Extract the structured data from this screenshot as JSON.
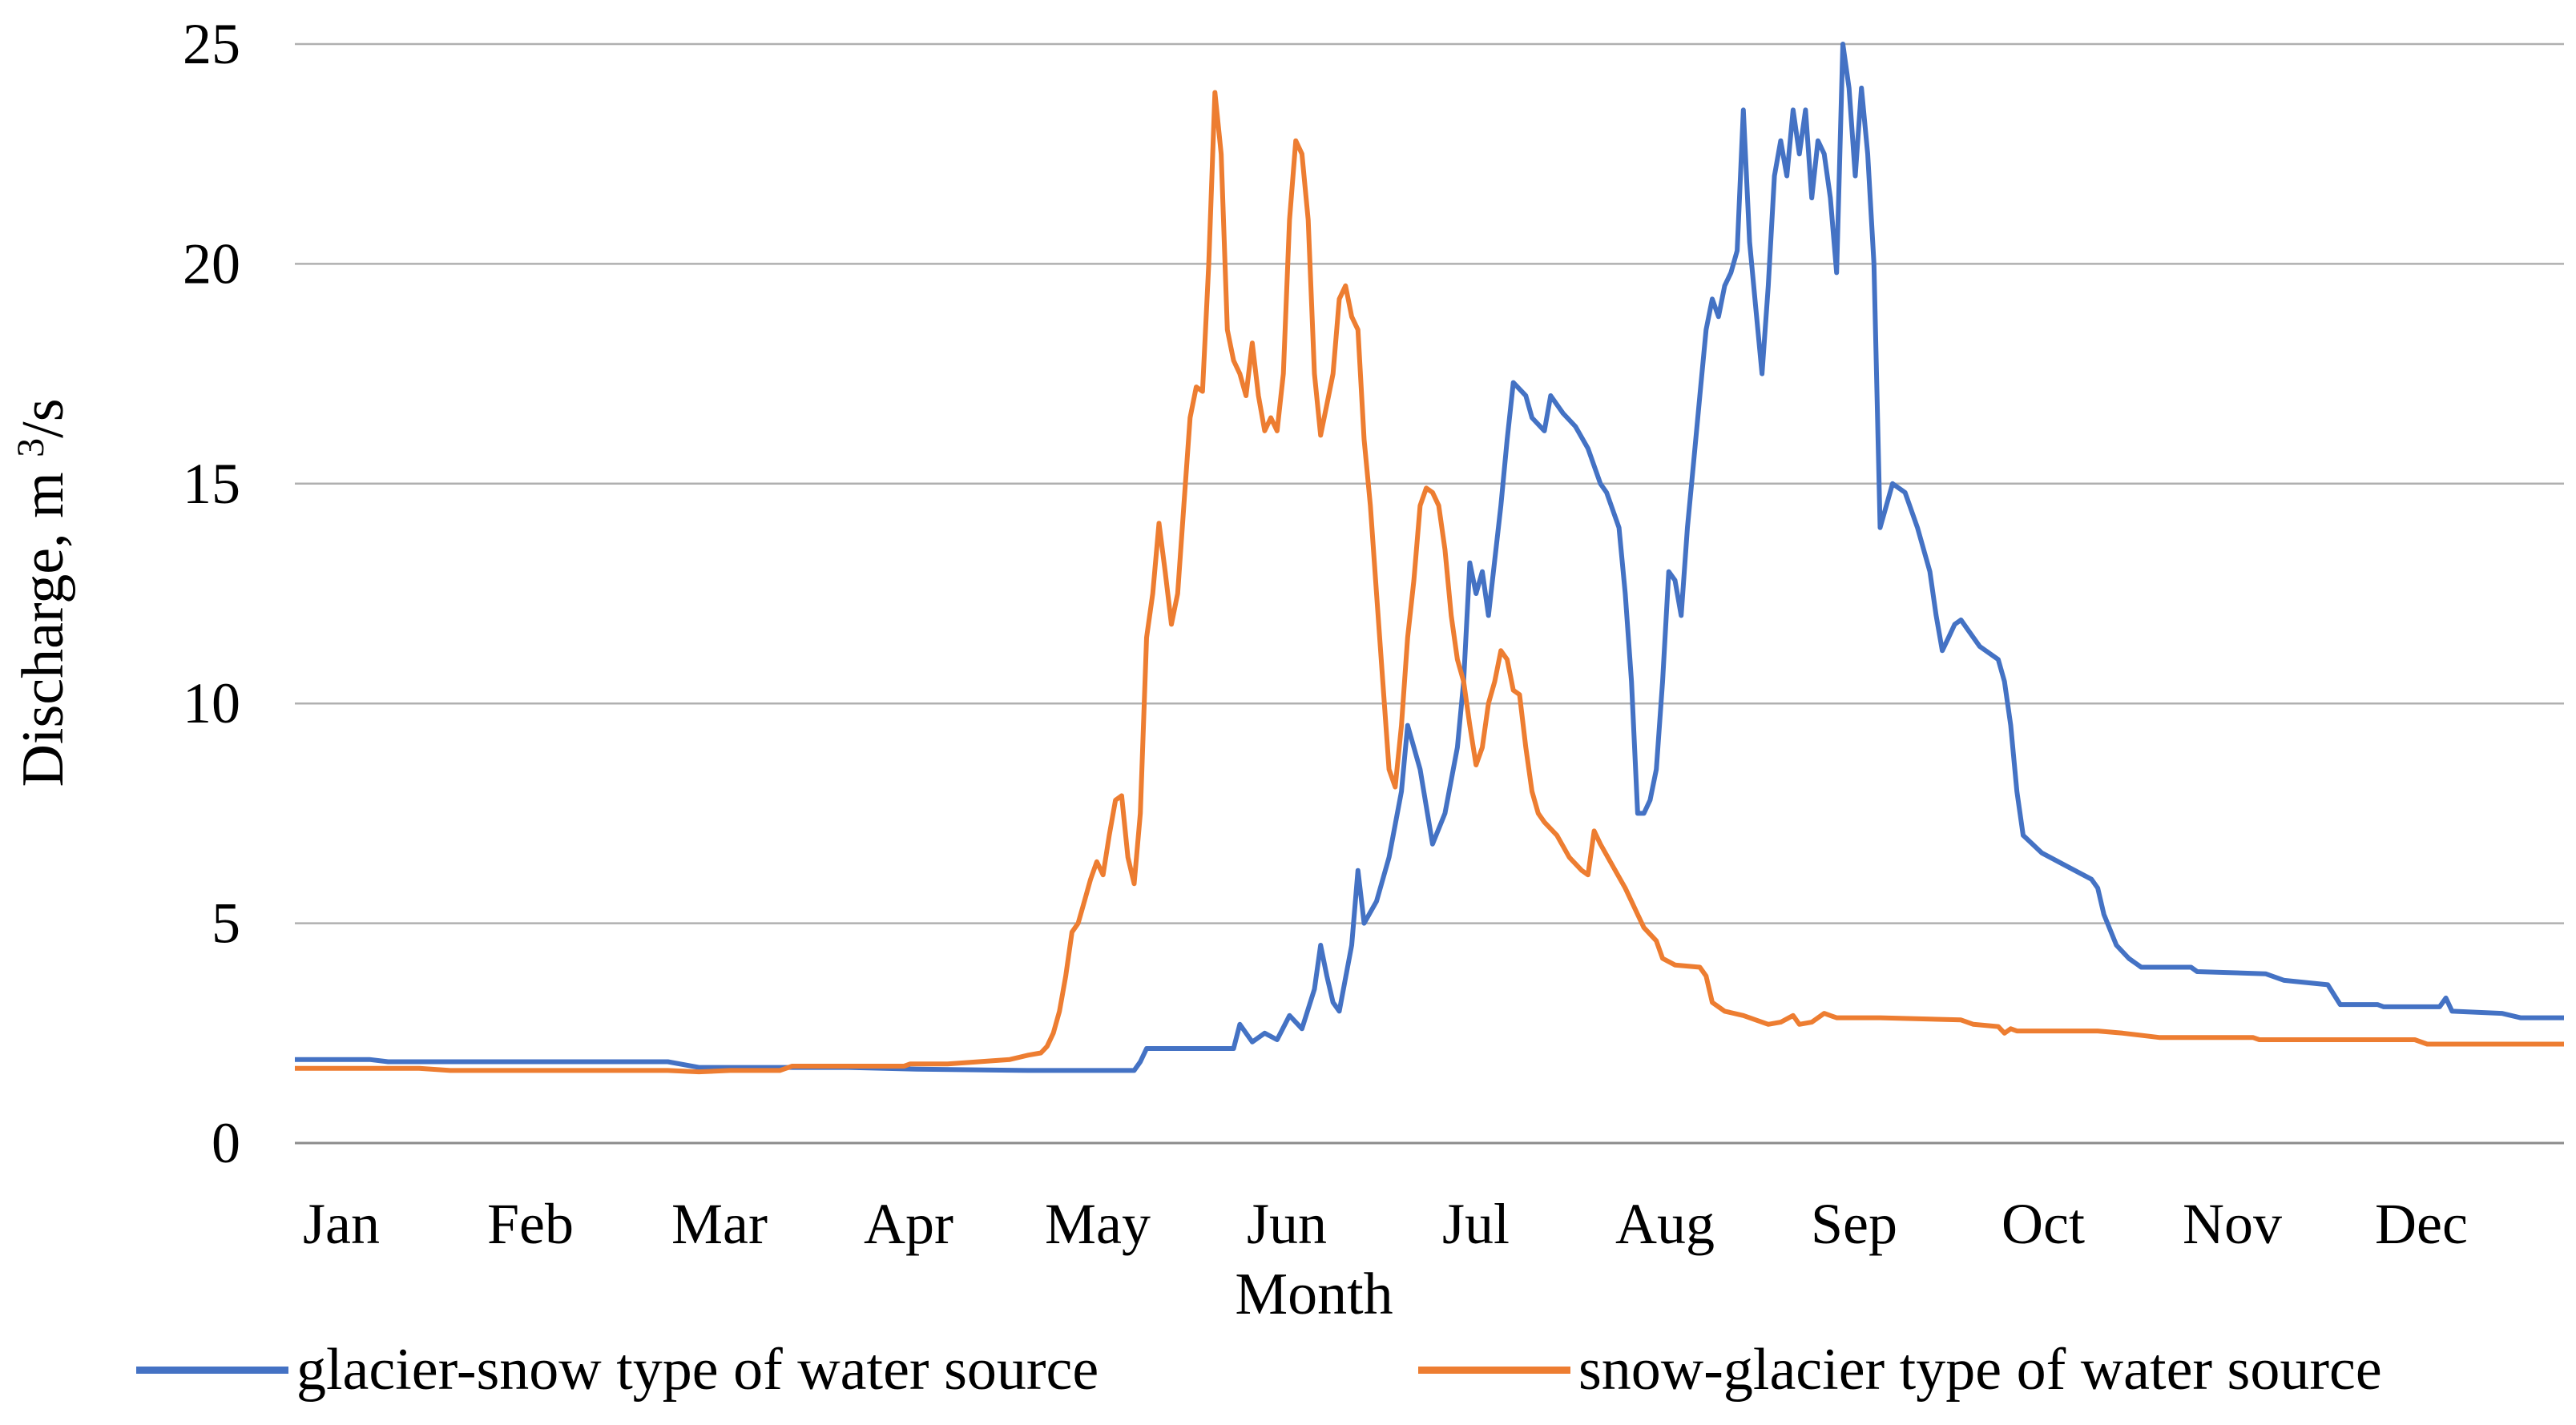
{
  "chart_data": {
    "type": "line",
    "title": "",
    "xlabel": "Month",
    "ylabel": "Discharge, m ³/s",
    "ylabel_main": "Discharge, m ",
    "ylabel_sup": "3",
    "ylabel_tail": "/s",
    "ylim": [
      0,
      25
    ],
    "yticks": [
      0,
      5,
      10,
      15,
      20,
      25
    ],
    "grid": true,
    "legend_position": "bottom",
    "months": [
      "Jan",
      "Feb",
      "Mar",
      "Apr",
      "May",
      "Jun",
      "Jul",
      "Aug",
      "Sep",
      "Oct",
      "Nov",
      "Dec"
    ],
    "day_range": [
      0,
      365
    ],
    "series": [
      {
        "name": "glacier-snow type of water source",
        "color": "#4472C4",
        "points": [
          [
            0,
            1.9
          ],
          [
            12,
            1.9
          ],
          [
            15,
            1.85
          ],
          [
            60,
            1.85
          ],
          [
            65,
            1.72
          ],
          [
            89,
            1.72
          ],
          [
            100,
            1.68
          ],
          [
            118,
            1.65
          ],
          [
            130,
            1.65
          ],
          [
            135,
            1.65
          ],
          [
            136,
            1.85
          ],
          [
            137,
            2.15
          ],
          [
            148,
            2.15
          ],
          [
            151,
            2.15
          ],
          [
            152,
            2.7
          ],
          [
            154,
            2.3
          ],
          [
            156,
            2.5
          ],
          [
            158,
            2.35
          ],
          [
            160,
            2.9
          ],
          [
            162,
            2.6
          ],
          [
            164,
            3.5
          ],
          [
            165,
            4.5
          ],
          [
            166,
            3.8
          ],
          [
            167,
            3.2
          ],
          [
            168,
            3.0
          ],
          [
            170,
            4.5
          ],
          [
            171,
            6.2
          ],
          [
            172,
            5.0
          ],
          [
            174,
            5.5
          ],
          [
            176,
            6.5
          ],
          [
            178,
            8.0
          ],
          [
            179,
            9.5
          ],
          [
            181,
            8.5
          ],
          [
            183,
            6.8
          ],
          [
            185,
            7.5
          ],
          [
            187,
            9.0
          ],
          [
            188,
            10.5
          ],
          [
            189,
            13.2
          ],
          [
            190,
            12.5
          ],
          [
            191,
            13.0
          ],
          [
            192,
            12.0
          ],
          [
            194,
            14.5
          ],
          [
            195,
            16.0
          ],
          [
            196,
            17.3
          ],
          [
            198,
            17.0
          ],
          [
            199,
            16.5
          ],
          [
            201,
            16.2
          ],
          [
            202,
            17.0
          ],
          [
            204,
            16.6
          ],
          [
            206,
            16.3
          ],
          [
            208,
            15.8
          ],
          [
            210,
            15.0
          ],
          [
            211,
            14.8
          ],
          [
            213,
            14.0
          ],
          [
            214,
            12.5
          ],
          [
            215,
            10.5
          ],
          [
            216,
            7.5
          ],
          [
            217,
            7.5
          ],
          [
            218,
            7.8
          ],
          [
            219,
            8.5
          ],
          [
            220,
            10.5
          ],
          [
            221,
            13.0
          ],
          [
            222,
            12.8
          ],
          [
            223,
            12.0
          ],
          [
            224,
            14.0
          ],
          [
            225,
            15.5
          ],
          [
            226,
            17.0
          ],
          [
            227,
            18.5
          ],
          [
            228,
            19.2
          ],
          [
            229,
            18.8
          ],
          [
            230,
            19.5
          ],
          [
            231,
            19.8
          ],
          [
            232,
            20.3
          ],
          [
            233,
            23.5
          ],
          [
            234,
            20.5
          ],
          [
            235,
            19.0
          ],
          [
            236,
            17.5
          ],
          [
            237,
            19.5
          ],
          [
            238,
            22.0
          ],
          [
            239,
            22.8
          ],
          [
            240,
            22.0
          ],
          [
            241,
            23.5
          ],
          [
            242,
            22.5
          ],
          [
            243,
            23.5
          ],
          [
            244,
            21.5
          ],
          [
            245,
            22.8
          ],
          [
            246,
            22.5
          ],
          [
            247,
            21.5
          ],
          [
            248,
            19.8
          ],
          [
            249,
            25.0
          ],
          [
            250,
            24.0
          ],
          [
            251,
            22.0
          ],
          [
            252,
            24.0
          ],
          [
            253,
            22.5
          ],
          [
            254,
            20.0
          ],
          [
            255,
            14.0
          ],
          [
            256,
            14.5
          ],
          [
            257,
            15.0
          ],
          [
            259,
            14.8
          ],
          [
            261,
            14.0
          ],
          [
            263,
            13.0
          ],
          [
            264,
            12.0
          ],
          [
            265,
            11.2
          ],
          [
            266,
            11.5
          ],
          [
            267,
            11.8
          ],
          [
            268,
            11.9
          ],
          [
            269,
            11.7
          ],
          [
            271,
            11.3
          ],
          [
            274,
            11.0
          ],
          [
            275,
            10.5
          ],
          [
            276,
            9.5
          ],
          [
            277,
            8.0
          ],
          [
            278,
            7.0
          ],
          [
            281,
            6.6
          ],
          [
            285,
            6.3
          ],
          [
            289,
            6.0
          ],
          [
            290,
            5.8
          ],
          [
            291,
            5.2
          ],
          [
            293,
            4.5
          ],
          [
            295,
            4.2
          ],
          [
            297,
            4.0
          ],
          [
            305,
            4.0
          ],
          [
            306,
            3.9
          ],
          [
            317,
            3.85
          ],
          [
            320,
            3.7
          ],
          [
            327,
            3.6
          ],
          [
            329,
            3.15
          ],
          [
            335,
            3.15
          ],
          [
            336,
            3.1
          ],
          [
            345,
            3.1
          ],
          [
            346,
            3.3
          ],
          [
            347,
            3.0
          ],
          [
            355,
            2.95
          ],
          [
            358,
            2.85
          ],
          [
            365,
            2.85
          ]
        ]
      },
      {
        "name": "snow-glacier type of water source",
        "color": "#ED7D31",
        "points": [
          [
            0,
            1.7
          ],
          [
            20,
            1.7
          ],
          [
            25,
            1.65
          ],
          [
            60,
            1.65
          ],
          [
            65,
            1.62
          ],
          [
            70,
            1.65
          ],
          [
            78,
            1.65
          ],
          [
            80,
            1.75
          ],
          [
            98,
            1.75
          ],
          [
            99,
            1.8
          ],
          [
            105,
            1.8
          ],
          [
            110,
            1.85
          ],
          [
            115,
            1.9
          ],
          [
            118,
            2.0
          ],
          [
            120,
            2.05
          ],
          [
            121,
            2.2
          ],
          [
            122,
            2.5
          ],
          [
            123,
            3.0
          ],
          [
            124,
            3.8
          ],
          [
            125,
            4.8
          ],
          [
            126,
            5.0
          ],
          [
            127,
            5.5
          ],
          [
            128,
            6.0
          ],
          [
            129,
            6.4
          ],
          [
            130,
            6.1
          ],
          [
            131,
            7.0
          ],
          [
            132,
            7.8
          ],
          [
            133,
            7.9
          ],
          [
            134,
            6.5
          ],
          [
            135,
            5.9
          ],
          [
            136,
            7.5
          ],
          [
            137,
            11.5
          ],
          [
            138,
            12.5
          ],
          [
            139,
            14.1
          ],
          [
            140,
            13.0
          ],
          [
            141,
            11.8
          ],
          [
            142,
            12.5
          ],
          [
            143,
            14.5
          ],
          [
            144,
            16.5
          ],
          [
            145,
            17.2
          ],
          [
            146,
            17.1
          ],
          [
            147,
            20.0
          ],
          [
            148,
            23.9
          ],
          [
            149,
            22.5
          ],
          [
            150,
            18.5
          ],
          [
            151,
            17.8
          ],
          [
            152,
            17.5
          ],
          [
            153,
            17.0
          ],
          [
            154,
            18.2
          ],
          [
            155,
            17.0
          ],
          [
            156,
            16.2
          ],
          [
            157,
            16.5
          ],
          [
            158,
            16.2
          ],
          [
            159,
            17.5
          ],
          [
            160,
            21.0
          ],
          [
            161,
            22.8
          ],
          [
            162,
            22.5
          ],
          [
            163,
            21.0
          ],
          [
            164,
            17.5
          ],
          [
            165,
            16.1
          ],
          [
            166,
            16.8
          ],
          [
            167,
            17.5
          ],
          [
            168,
            19.2
          ],
          [
            169,
            19.5
          ],
          [
            170,
            18.8
          ],
          [
            171,
            18.5
          ],
          [
            172,
            16.0
          ],
          [
            173,
            14.5
          ],
          [
            174,
            12.5
          ],
          [
            175,
            10.5
          ],
          [
            176,
            8.5
          ],
          [
            177,
            8.1
          ],
          [
            178,
            9.5
          ],
          [
            179,
            11.5
          ],
          [
            180,
            12.8
          ],
          [
            181,
            14.5
          ],
          [
            182,
            14.9
          ],
          [
            183,
            14.8
          ],
          [
            184,
            14.5
          ],
          [
            185,
            13.5
          ],
          [
            186,
            12.0
          ],
          [
            187,
            11.0
          ],
          [
            188,
            10.5
          ],
          [
            189,
            9.5
          ],
          [
            190,
            8.6
          ],
          [
            191,
            9.0
          ],
          [
            192,
            10.0
          ],
          [
            193,
            10.5
          ],
          [
            194,
            11.2
          ],
          [
            195,
            11.0
          ],
          [
            196,
            10.3
          ],
          [
            197,
            10.2
          ],
          [
            198,
            9.0
          ],
          [
            199,
            8.0
          ],
          [
            200,
            7.5
          ],
          [
            201,
            7.3
          ],
          [
            203,
            7.0
          ],
          [
            205,
            6.5
          ],
          [
            207,
            6.2
          ],
          [
            208,
            6.1
          ],
          [
            209,
            7.1
          ],
          [
            210,
            6.8
          ],
          [
            212,
            6.3
          ],
          [
            214,
            5.8
          ],
          [
            215,
            5.5
          ],
          [
            216,
            5.2
          ],
          [
            217,
            4.9
          ],
          [
            219,
            4.6
          ],
          [
            220,
            4.2
          ],
          [
            222,
            4.05
          ],
          [
            226,
            4.0
          ],
          [
            227,
            3.8
          ],
          [
            228,
            3.2
          ],
          [
            230,
            3.0
          ],
          [
            233,
            2.9
          ],
          [
            235,
            2.8
          ],
          [
            237,
            2.7
          ],
          [
            239,
            2.75
          ],
          [
            241,
            2.9
          ],
          [
            242,
            2.7
          ],
          [
            244,
            2.75
          ],
          [
            246,
            2.95
          ],
          [
            248,
            2.85
          ],
          [
            255,
            2.85
          ],
          [
            268,
            2.8
          ],
          [
            270,
            2.7
          ],
          [
            274,
            2.65
          ],
          [
            275,
            2.5
          ],
          [
            276,
            2.6
          ],
          [
            277,
            2.55
          ],
          [
            290,
            2.55
          ],
          [
            294,
            2.5
          ],
          [
            300,
            2.4
          ],
          [
            315,
            2.4
          ],
          [
            316,
            2.35
          ],
          [
            341,
            2.35
          ],
          [
            343,
            2.25
          ],
          [
            365,
            2.25
          ]
        ]
      }
    ]
  }
}
